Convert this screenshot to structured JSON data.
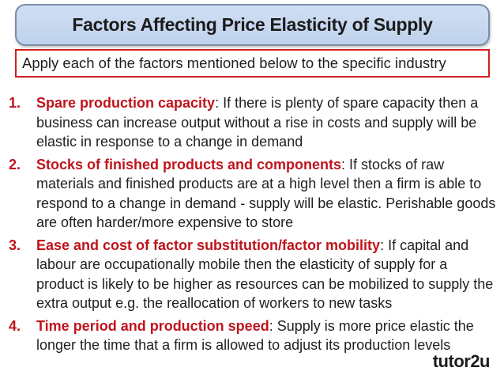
{
  "title": "Factors Affecting Price Elasticity of Supply",
  "subtitle": "Apply each of the factors mentioned below to the specific industry",
  "factors": [
    {
      "number": "1.",
      "heading": "Spare production capacity",
      "text": ": If there is plenty of spare capacity then a business can increase output without a rise in costs and supply will be elastic in response to a change in demand"
    },
    {
      "number": "2.",
      "heading": "Stocks of finished products and components",
      "text": ": If stocks of raw materials and finished products are at a high level then a firm is able to respond to a change in demand - supply will be elastic. Perishable goods are often harder/more expensive to store"
    },
    {
      "number": "3.",
      "heading": "Ease and cost of factor substitution/factor mobility",
      "text": ": If capital and labour are occupationally mobile then the elasticity of supply for a product is likely to be higher as resources can be mobilized to supply the extra output e.g. the reallocation of workers to new tasks"
    },
    {
      "number": "4.",
      "heading": "Time period and production speed",
      "text": ": Supply is more price elastic the longer the time that a firm is allowed to adjust its production levels"
    }
  ],
  "logo": "tutor2u"
}
